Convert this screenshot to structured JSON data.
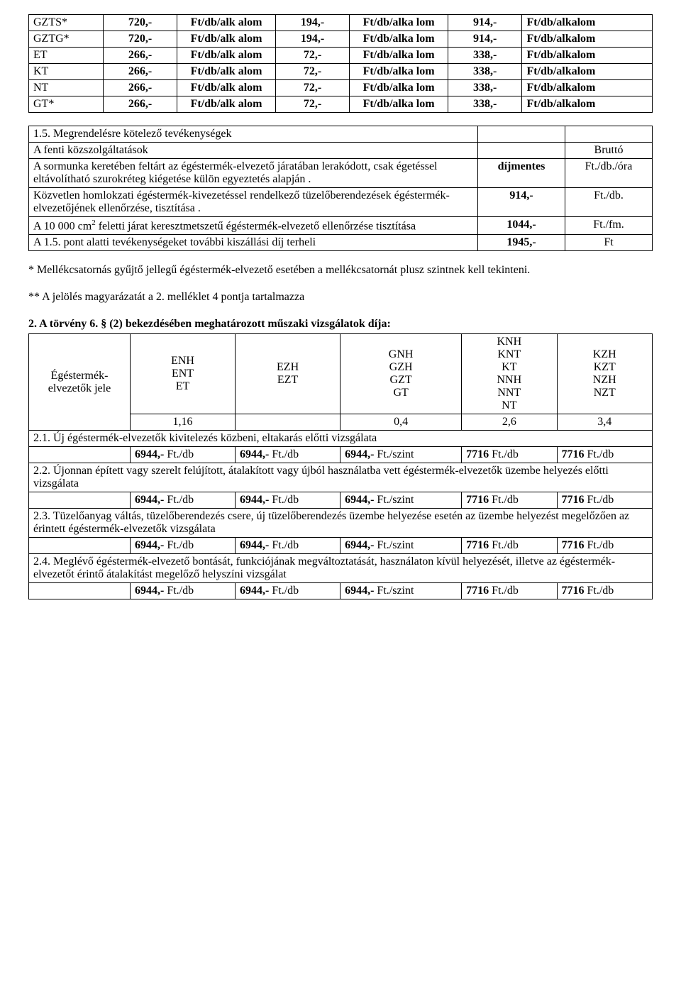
{
  "table1": {
    "rows": [
      {
        "code": "GZTS*",
        "p1": "720,-",
        "u1": "Ft/db/alk alom",
        "p2": "194,-",
        "u2": "Ft/db/alka lom",
        "p3": "914,-",
        "u3": "Ft/db/alkalom"
      },
      {
        "code": "GZTG*",
        "p1": "720,-",
        "u1": "Ft/db/alk alom",
        "p2": "194,-",
        "u2": "Ft/db/alka lom",
        "p3": "914,-",
        "u3": "Ft/db/alkalom"
      },
      {
        "code": "ET",
        "p1": "266,-",
        "u1": "Ft/db/alk alom",
        "p2": "72,-",
        "u2": "Ft/db/alka lom",
        "p3": "338,-",
        "u3": "Ft/db/alkalom"
      },
      {
        "code": "KT",
        "p1": "266,-",
        "u1": "Ft/db/alk alom",
        "p2": "72,-",
        "u2": "Ft/db/alka lom",
        "p3": "338,-",
        "u3": "Ft/db/alkalom"
      },
      {
        "code": "NT",
        "p1": "266,-",
        "u1": "Ft/db/alk alom",
        "p2": "72,-",
        "u2": "Ft/db/alka lom",
        "p3": "338,-",
        "u3": "Ft/db/alkalom"
      },
      {
        "code": "GT*",
        "p1": "266,-",
        "u1": "Ft/db/alk alom",
        "p2": "72,-",
        "u2": "Ft/db/alka lom",
        "p3": "338,-",
        "u3": "Ft/db/alkalom"
      }
    ]
  },
  "table2": {
    "title": "1.5. Megrendelésre kötelező tevékenységek",
    "sub": "A fenti közszolgáltatások",
    "brutto": "Bruttó",
    "rows": [
      {
        "desc_pre": "A sormunka keretében feltárt az égéstermék-elvezető járatában lerakódott, csak égetéssel eltávolítható szurokréteg kiégetése külön egyeztetés alapján .",
        "val": "díjmentes",
        "unit": "Ft./db./óra"
      },
      {
        "desc_pre": "Közvetlen homlokzati égéstermék-kivezetéssel rendelkező tüzelőberendezések égéstermék-elvezetőjének ellenőrzése, tisztítása .",
        "val": "914,-",
        "unit": "Ft./db."
      },
      {
        "desc_pre": "A 10 000 cm",
        "desc_sup": "2",
        "desc_post": " feletti járat keresztmetszetű égéstermék-elvezető ellenőrzése tisztítása",
        "val": "1044,-",
        "unit": "Ft./fm."
      },
      {
        "desc_pre": "A 1.5. pont alatti tevékenységeket további kiszállási díj terheli",
        "val": "1945,-",
        "unit": "Ft"
      }
    ]
  },
  "notes": {
    "n1": "* Mellékcsatornás gyűjtő jellegű égéstermék-elvezető esetében a mellékcsatornát plusz szintnek kell tekinteni.",
    "n2": "** A jelölés magyarázatát a 2. melléklet 4 pontja tartalmazza"
  },
  "section2": {
    "title": "2. A törvény 6. § (2) bekezdésében meghatározott műszaki vizsgálatok díja:",
    "hdr_lead": "Égéstermék-elvezetők jele",
    "cols": [
      {
        "items": [
          "ENH",
          "ENT",
          "ET"
        ],
        "factor": "1,16"
      },
      {
        "items": [
          "EZH",
          "EZT"
        ],
        "factor": ""
      },
      {
        "items": [
          "GNH",
          "GZH",
          "GZT",
          "GT"
        ],
        "factor": "0,4"
      },
      {
        "items": [
          "KNH",
          "KNT",
          "KT",
          "NNH",
          "NNT",
          "NT"
        ],
        "factor": "2,6"
      },
      {
        "items": [
          "KZH",
          "KZT",
          "NZH",
          "NZT"
        ],
        "factor": "3,4"
      }
    ],
    "rows": [
      {
        "label": "2.1. Új égéstermék-elvezetők kivitelezés közbeni, eltakarás előtti vizsgálata",
        "vals": [
          {
            "p": "6944,-",
            "u": " Ft./db"
          },
          {
            "p": "6944,-",
            "u": " Ft./db"
          },
          {
            "p": "6944,-",
            "u": " Ft./szint"
          },
          {
            "p": "7716",
            "u": " Ft./db"
          },
          {
            "p": "7716 ",
            "u": " Ft./db"
          }
        ]
      },
      {
        "label": "2.2. Újonnan épített vagy szerelt felújított, átalakított vagy újból használatba vett égéstermék-elvezetők üzembe helyezés előtti vizsgálata",
        "vals": [
          {
            "p": "6944,-",
            "u": " Ft./db"
          },
          {
            "p": "6944,-",
            "u": " Ft./db"
          },
          {
            "p": "6944,-",
            "u": " Ft./szint"
          },
          {
            "p": "7716",
            "u": " Ft./db"
          },
          {
            "p": "7716 ",
            "u": " Ft./db"
          }
        ]
      },
      {
        "label": "2.3. Tüzelőanyag váltás, tüzelőberendezés csere, új tüzelőberendezés üzembe helyezése esetén az üzembe helyezést megelőzően az érintett égéstermék-elvezetők vizsgálata",
        "vals": [
          {
            "p": "6944,-",
            "u": " Ft./db"
          },
          {
            "p": "6944,-",
            "u": " Ft./db"
          },
          {
            "p": "6944,-",
            "u": " Ft./szint"
          },
          {
            "p": "7716",
            "u": " Ft./db"
          },
          {
            "p": "7716 ",
            "u": " Ft./db"
          }
        ]
      },
      {
        "label": "2.4. Meglévő égéstermék-elvezető bontását, funkciójának megváltoztatását, használaton kívül helyezését, illetve az égéstermék-elvezetőt érintő átalakítást megelőző helyszíni vizsgálat",
        "vals": [
          {
            "p": "6944,-",
            "u": " Ft./db"
          },
          {
            "p": "6944,-",
            "u": " Ft./db"
          },
          {
            "p": "6944,-",
            "u": " Ft./szint"
          },
          {
            "p": "7716",
            "u": " Ft./db"
          },
          {
            "p": "7716 ",
            "u": " Ft./db"
          }
        ]
      }
    ]
  }
}
